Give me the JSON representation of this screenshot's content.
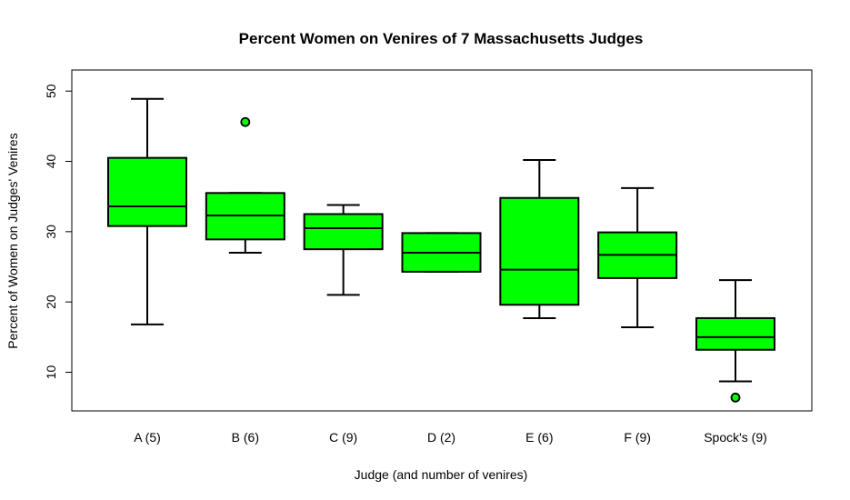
{
  "chart_data": {
    "type": "boxplot",
    "title": "Percent Women on Venires of 7 Massachusetts Judges",
    "xlabel": "Judge (and number of venires)",
    "ylabel": "Percent of Women on Judges' Venires",
    "ylim": [
      4.5,
      53
    ],
    "yticks": [
      10,
      20,
      30,
      40,
      50
    ],
    "grid": false,
    "box_color": "#00ff00",
    "outline_color": "#000000",
    "categories": [
      "A (5)",
      "B (6)",
      "C (9)",
      "D (2)",
      "E (6)",
      "F (9)",
      "Spock's (9)"
    ],
    "boxes": [
      {
        "label": "A (5)",
        "whisker_low": 16.8,
        "q1": 30.8,
        "median": 33.6,
        "q3": 40.5,
        "whisker_high": 48.9,
        "outliers": []
      },
      {
        "label": "B (6)",
        "whisker_low": 27.0,
        "q1": 28.9,
        "median": 32.3,
        "q3": 35.5,
        "whisker_high": 35.5,
        "outliers": [
          45.6
        ]
      },
      {
        "label": "C (9)",
        "whisker_low": 21.0,
        "q1": 27.5,
        "median": 30.5,
        "q3": 32.5,
        "whisker_high": 33.8,
        "outliers": []
      },
      {
        "label": "D (2)",
        "whisker_low": 24.3,
        "q1": 24.3,
        "median": 27.0,
        "q3": 29.8,
        "whisker_high": 29.8,
        "outliers": []
      },
      {
        "label": "E (6)",
        "whisker_low": 17.7,
        "q1": 19.6,
        "median": 24.6,
        "q3": 34.8,
        "whisker_high": 40.2,
        "outliers": []
      },
      {
        "label": "F (9)",
        "whisker_low": 16.4,
        "q1": 23.4,
        "median": 26.7,
        "q3": 29.9,
        "whisker_high": 36.2,
        "outliers": []
      },
      {
        "label": "Spock's (9)",
        "whisker_low": 8.7,
        "q1": 13.2,
        "median": 15.0,
        "q3": 17.7,
        "whisker_high": 23.1,
        "outliers": [
          6.4
        ]
      }
    ]
  }
}
